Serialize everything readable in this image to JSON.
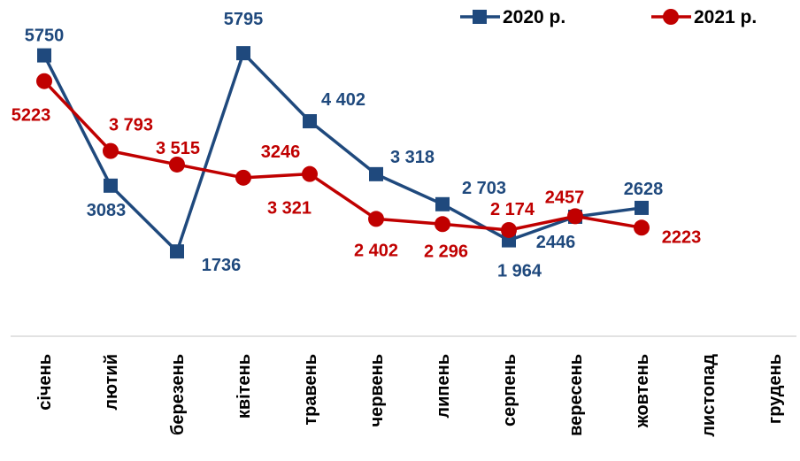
{
  "chart_data": {
    "type": "line",
    "categories": [
      "січень",
      "лютий",
      "березень",
      "квітень",
      "травень",
      "червень",
      "липень",
      "серпень",
      "вересень",
      "жовтень",
      "листопад",
      "грудень"
    ],
    "series": [
      {
        "name": "2020 р.",
        "color": "#1f497d",
        "marker": "square",
        "values": [
          5750,
          3083,
          1736,
          5795,
          4402,
          3318,
          2703,
          1964,
          2446,
          2628,
          null,
          null
        ],
        "labels": [
          "5750",
          "3083",
          "1736",
          "5795",
          "4 402",
          "3 318",
          "2 703",
          "1 964",
          "2446",
          "2628",
          null,
          null
        ]
      },
      {
        "name": "2021 р.",
        "color": "#c00000",
        "marker": "circle",
        "values": [
          5223,
          3793,
          3515,
          3246,
          3321,
          2402,
          2296,
          2174,
          2457,
          2223,
          null,
          null
        ],
        "labels": [
          "5223",
          "3 793",
          "3 515",
          "3246",
          "3 321",
          "2 402",
          "2 296",
          "2 174",
          "2457",
          "2223",
          null,
          null
        ]
      }
    ],
    "ylim": [
      0,
      6300
    ],
    "grid": false,
    "legend": "top-right",
    "title": "",
    "xlabel": "",
    "ylabel": ""
  }
}
